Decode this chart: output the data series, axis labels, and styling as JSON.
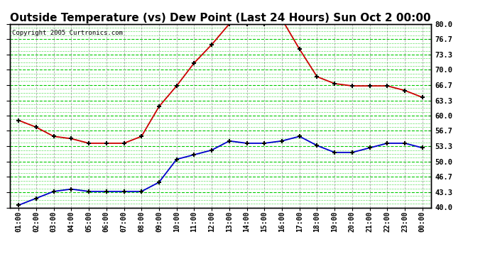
{
  "title": "Outside Temperature (vs) Dew Point (Last 24 Hours) Sun Oct 2 00:00",
  "copyright": "Copyright 2005 Curtronics.com",
  "x_labels": [
    "01:00",
    "02:00",
    "03:00",
    "04:00",
    "05:00",
    "06:00",
    "07:00",
    "08:00",
    "09:00",
    "10:00",
    "11:00",
    "12:00",
    "13:00",
    "14:00",
    "15:00",
    "16:00",
    "17:00",
    "18:00",
    "19:00",
    "20:00",
    "21:00",
    "22:00",
    "23:00",
    "00:00"
  ],
  "temp_data": [
    59.0,
    57.5,
    55.5,
    55.0,
    54.0,
    54.0,
    54.0,
    55.5,
    62.0,
    66.5,
    71.5,
    75.5,
    80.0,
    80.0,
    80.0,
    81.0,
    74.5,
    68.5,
    67.0,
    66.5,
    66.5,
    66.5,
    65.5,
    64.0
  ],
  "dew_data": [
    40.5,
    42.0,
    43.5,
    44.0,
    43.5,
    43.5,
    43.5,
    43.5,
    45.5,
    50.5,
    51.5,
    52.5,
    54.5,
    54.0,
    54.0,
    54.5,
    55.5,
    53.5,
    52.0,
    52.0,
    53.0,
    54.0,
    54.0,
    53.0
  ],
  "temp_color": "#cc0000",
  "dew_color": "#0000cc",
  "bg_color": "#ffffff",
  "grid_color": "#00cc00",
  "title_fontsize": 11,
  "ylim": [
    40.0,
    80.0
  ],
  "yticks": [
    40.0,
    43.3,
    46.7,
    50.0,
    53.3,
    56.7,
    60.0,
    63.3,
    66.7,
    70.0,
    73.3,
    76.7,
    80.0
  ],
  "ytick_labels": [
    "40.0",
    "43.3",
    "46.7",
    "50.0",
    "53.3",
    "56.7",
    "60.0",
    "63.3",
    "66.7",
    "70.0",
    "73.3",
    "76.7",
    "80.0"
  ]
}
